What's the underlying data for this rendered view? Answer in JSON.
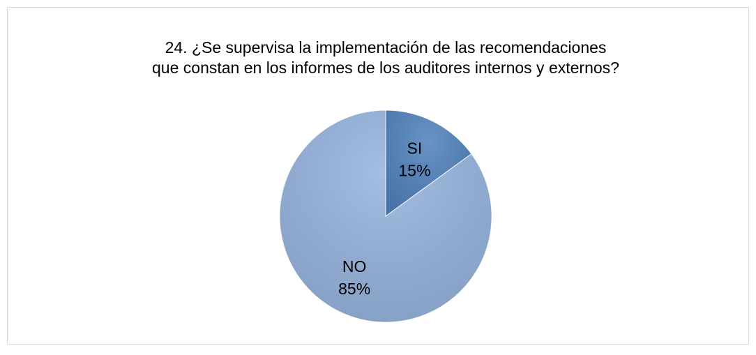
{
  "chart_data": {
    "type": "pie",
    "title": [
      "24. ¿Se supervisa la implementación de las recomendaciones",
      "que constan en los informes de los auditores internos y externos?"
    ],
    "categories": [
      "SI",
      "NO"
    ],
    "values": [
      15,
      85
    ],
    "value_labels": [
      "15%",
      "85%"
    ],
    "colors": [
      "#4f81bd",
      "#95b3de"
    ]
  }
}
